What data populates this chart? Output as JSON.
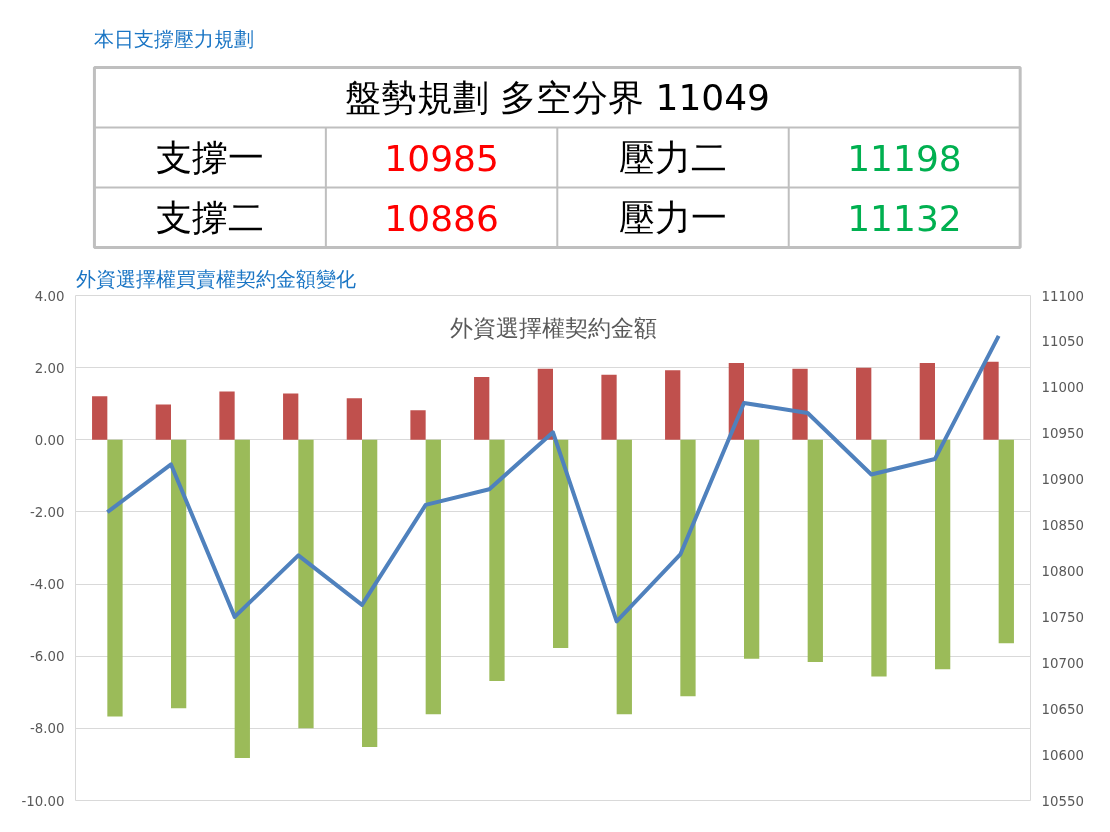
{
  "chart_data": [
    {
      "type": "other",
      "title": "本日支撐壓力規劃",
      "annotations": [
        "盤勢規劃 多空分界 11049",
        "支撐一",
        "10985",
        "壓力二",
        "11198",
        "支撐二",
        "10886",
        "壓力一",
        "11132"
      ],
      "colors": [
        "#000000",
        "#000000",
        "#ff0000",
        "#000000",
        "#00b050",
        "#000000",
        "#ff0000",
        "#000000",
        "#00b050"
      ]
    },
    {
      "type": "bar",
      "title": "外資選擇權買賣權契約金額變化",
      "subtitle": "外資選擇權契約金額",
      "categories": [
        null,
        null,
        null,
        null,
        null,
        null,
        null,
        null,
        null,
        null,
        null,
        null,
        null,
        null,
        null
      ],
      "series": [
        {
          "type": "bar",
          "color": "#c0504d",
          "values": [
            1.21,
            0.98,
            1.34,
            1.28,
            1.15,
            0.82,
            1.74,
            1.97,
            1.8,
            1.93,
            2.13,
            1.97,
            2.0,
            2.13,
            2.16
          ]
        },
        {
          "type": "bar",
          "color": "#9bbb59",
          "values": [
            -7.67,
            -7.44,
            -8.82,
            -8.0,
            -8.52,
            -7.61,
            -6.69,
            -5.77,
            -7.61,
            -7.11,
            -6.07,
            -6.16,
            -6.56,
            -6.36,
            -5.64
          ]
        },
        {
          "type": "line",
          "axis": "y2",
          "color": "#4f81bd",
          "values": [
            10864,
            10916,
            10750,
            10817,
            10763,
            10872,
            10889,
            10951,
            10745,
            10818,
            10983,
            10972,
            10905,
            10922,
            11056
          ]
        }
      ],
      "ylim": [
        -10,
        4
      ],
      "yticks": [
        {
          "value": -10,
          "label": "-10.00"
        },
        {
          "value": -8,
          "label": "-8.00"
        },
        {
          "value": -6,
          "label": "-6.00"
        },
        {
          "value": -4,
          "label": "-4.00"
        },
        {
          "value": -2,
          "label": "-2.00"
        },
        {
          "value": 0,
          "label": "0.00"
        },
        {
          "value": 2,
          "label": "2.00"
        },
        {
          "value": 4,
          "label": "4.00"
        }
      ],
      "y2lim": [
        10550,
        11100
      ],
      "y2ticks": [
        10550,
        10600,
        10650,
        10700,
        10750,
        10800,
        10850,
        10900,
        10950,
        11000,
        11050,
        11100
      ],
      "grid": "y",
      "marker": "none",
      "line_style": "solid"
    }
  ]
}
